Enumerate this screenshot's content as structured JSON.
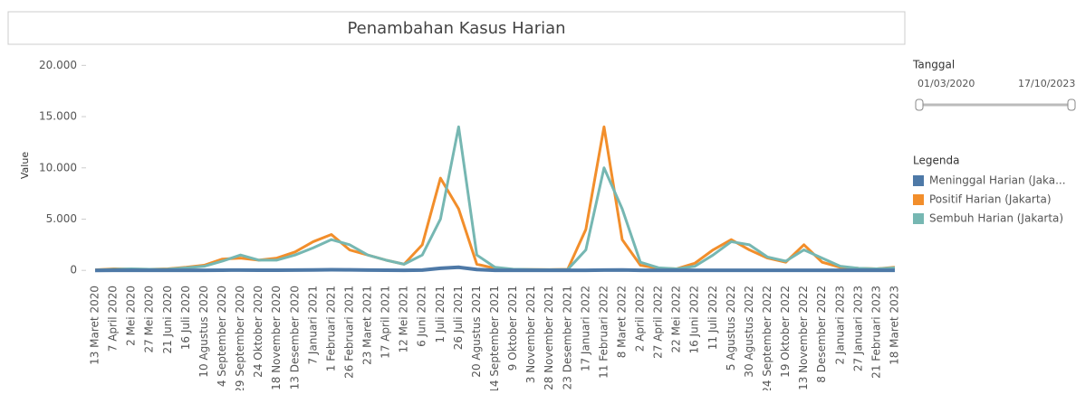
{
  "chart_data": {
    "type": "line",
    "title": "Penambahan Kasus Harian",
    "ylabel": "Value",
    "categories": [
      "13 Maret 2020",
      "7 April 2020",
      "2 Mei 2020",
      "27 Mei 2020",
      "21 Juni 2020",
      "16 Juli 2020",
      "10 Agustus 2020",
      "4 September 2020",
      "29 September 2020",
      "24 Oktober 2020",
      "18 November 2020",
      "13 Desember 2020",
      "7 Januari 2021",
      "1 Februari 2021",
      "26 Februari 2021",
      "23 Maret 2021",
      "17 April 2021",
      "12 Mei 2021",
      "6 Juni 2021",
      "1 Juli 2021",
      "26 Juli 2021",
      "20 Agustus 2021",
      "14 September 2021",
      "9 Oktober 2021",
      "3 November 2021",
      "28 November 2021",
      "23 Desember 2021",
      "17 Januari 2022",
      "11 Februari 2022",
      "8 Maret 2022",
      "2 April 2022",
      "27 April 2022",
      "22 Mei 2022",
      "16 Juni 2022",
      "11 Juli 2022",
      "5 Agustus 2022",
      "30 Agustus 2022",
      "24 September 2022",
      "19 Oktober 2022",
      "13 November 2022",
      "8 Desember 2022",
      "2 Januari 2023",
      "27 Januari 2023",
      "21 Februari 2023",
      "18 Maret 2023"
    ],
    "series": [
      {
        "name": "Meninggal Harian (Jaka...",
        "color": "#4e79a7",
        "values": [
          0,
          5,
          5,
          3,
          3,
          5,
          10,
          20,
          30,
          20,
          20,
          30,
          40,
          60,
          50,
          30,
          20,
          10,
          30,
          200,
          300,
          80,
          10,
          3,
          2,
          1,
          1,
          5,
          30,
          40,
          10,
          2,
          1,
          2,
          5,
          10,
          8,
          5,
          3,
          8,
          5,
          2,
          1,
          1,
          1
        ]
      },
      {
        "name": "Positif Harian (Jakarta)",
        "color": "#f28e2b",
        "values": [
          50,
          150,
          120,
          100,
          150,
          300,
          500,
          1100,
          1200,
          1000,
          1200,
          1800,
          2800,
          3500,
          2000,
          1500,
          1000,
          600,
          2500,
          9000,
          6000,
          600,
          200,
          100,
          80,
          70,
          100,
          4000,
          14000,
          3000,
          500,
          200,
          150,
          700,
          2000,
          3000,
          2000,
          1200,
          800,
          2500,
          800,
          300,
          200,
          150,
          300
        ]
      },
      {
        "name": "Sembuh Harian (Jakarta)",
        "color": "#76b7b2",
        "values": [
          30,
          100,
          150,
          100,
          120,
          250,
          400,
          900,
          1500,
          1000,
          1000,
          1500,
          2200,
          3000,
          2500,
          1500,
          1000,
          600,
          1500,
          5000,
          14000,
          1500,
          300,
          120,
          80,
          60,
          80,
          2000,
          10000,
          6000,
          800,
          250,
          150,
          400,
          1500,
          2800,
          2500,
          1300,
          900,
          2000,
          1200,
          400,
          200,
          150,
          250
        ]
      }
    ],
    "ylim": [
      -600,
      21000
    ],
    "yticks": [
      0,
      {
        "value": 5000,
        "label": "5.000"
      },
      {
        "value": 10000,
        "label": "10.000"
      },
      {
        "value": 15000,
        "label": "15.000"
      },
      {
        "value": 20000,
        "label": "20.000"
      }
    ],
    "filter": {
      "title": "Tanggal",
      "start": "01/03/2020",
      "end": "17/10/2023"
    },
    "legend_title": "Legenda"
  }
}
